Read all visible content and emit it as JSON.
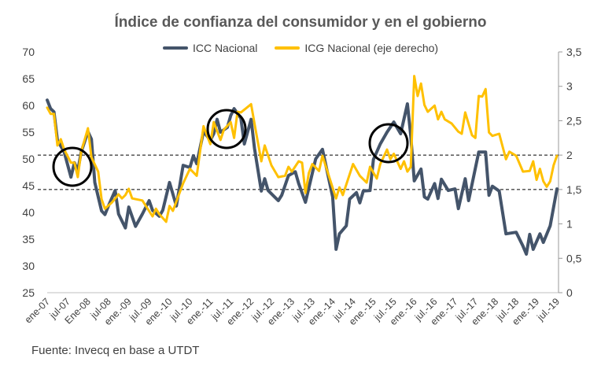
{
  "chart_data": {
    "type": "line",
    "title": "Índice de confianza del consumidor y en el gobierno",
    "source": "Fuente: Invecq en base a UTDT",
    "x_tick_labels": [
      "ene-07",
      "jul-07",
      "Ene-08",
      "jul-08",
      "ene.-09",
      "jul.-09",
      "ene.-10",
      "jul.-10",
      "ene.-11",
      "jul.-11",
      "ene.-12",
      "jul.-12",
      "ene.-13",
      "jul.-13",
      "ene.-14",
      "jul.-14",
      "ene.-15",
      "jul.-15",
      "ene.-16",
      "jul.-16",
      "ene.-17",
      "jul.-17",
      "ene.-18",
      "jul.-18",
      "ene.-19",
      "jul.-19"
    ],
    "xlim": [
      "2007-01",
      "2019-07"
    ],
    "y_left": {
      "ylim": [
        25,
        70
      ],
      "ticks": [
        "25",
        "30",
        "35",
        "40",
        "45",
        "50",
        "55",
        "60",
        "65",
        "70"
      ]
    },
    "y_right": {
      "ylim": [
        0,
        3.5
      ],
      "ticks": [
        "0",
        "0,5",
        "1",
        "1,5",
        "2",
        "2,5",
        "3",
        "3,5"
      ]
    },
    "reference_lines_right_axis": [
      2,
      1.5
    ],
    "grid": false,
    "legend_position": "top",
    "highlight_circles": [
      "2007-09",
      "2011-07",
      "2015-06"
    ],
    "series": [
      {
        "name": "ICC Nacional",
        "axis": "left",
        "color": "#44546A",
        "points": [
          [
            "2007-01",
            61.0
          ],
          [
            "2007-02",
            59.4
          ],
          [
            "2007-03",
            58.8
          ],
          [
            "2007-04",
            53.5
          ],
          [
            "2007-06",
            51.3
          ],
          [
            "2007-08",
            46.6
          ],
          [
            "2007-09",
            49.3
          ],
          [
            "2007-10",
            47.8
          ],
          [
            "2007-11",
            51.3
          ],
          [
            "2008-01",
            55.1
          ],
          [
            "2008-02",
            53.7
          ],
          [
            "2008-03",
            45.6
          ],
          [
            "2008-05",
            40.3
          ],
          [
            "2008-06",
            39.6
          ],
          [
            "2008-07",
            41.2
          ],
          [
            "2008-09",
            44.1
          ],
          [
            "2008-10",
            39.7
          ],
          [
            "2008-12",
            37.1
          ],
          [
            "2009-01",
            41.0
          ],
          [
            "2009-03",
            37.4
          ],
          [
            "2009-05",
            39.7
          ],
          [
            "2009-07",
            42.2
          ],
          [
            "2009-08",
            40.4
          ],
          [
            "2009-10",
            39.3
          ],
          [
            "2009-11",
            40.4
          ],
          [
            "2010-01",
            45.6
          ],
          [
            "2010-03",
            41.2
          ],
          [
            "2010-05",
            48.8
          ],
          [
            "2010-07",
            48.4
          ],
          [
            "2010-08",
            50.6
          ],
          [
            "2010-09",
            49.1
          ],
          [
            "2010-11",
            55.1
          ],
          [
            "2011-01",
            53.5
          ],
          [
            "2011-02",
            54.7
          ],
          [
            "2011-03",
            57.4
          ],
          [
            "2011-04",
            55.0
          ],
          [
            "2011-06",
            55.9
          ],
          [
            "2011-07",
            58.1
          ],
          [
            "2011-08",
            59.4
          ],
          [
            "2011-10",
            57.6
          ],
          [
            "2011-11",
            52.8
          ],
          [
            "2012-01",
            57.4
          ],
          [
            "2012-02",
            52.0
          ],
          [
            "2012-04",
            44.0
          ],
          [
            "2012-05",
            46.3
          ],
          [
            "2012-06",
            44.1
          ],
          [
            "2012-09",
            42.2
          ],
          [
            "2012-10",
            43.2
          ],
          [
            "2012-12",
            46.9
          ],
          [
            "2013-02",
            47.6
          ],
          [
            "2013-03",
            45.4
          ],
          [
            "2013-05",
            41.9
          ],
          [
            "2013-08",
            50.0
          ],
          [
            "2013-10",
            51.8
          ],
          [
            "2014-01",
            42.9
          ],
          [
            "2014-02",
            33.1
          ],
          [
            "2014-03",
            36.0
          ],
          [
            "2014-05",
            37.5
          ],
          [
            "2014-06",
            42.5
          ],
          [
            "2014-08",
            43.7
          ],
          [
            "2014-09",
            41.8
          ],
          [
            "2014-10",
            44.0
          ],
          [
            "2014-12",
            44.1
          ],
          [
            "2015-01",
            49.9
          ],
          [
            "2015-03",
            52.8
          ],
          [
            "2015-05",
            55.0
          ],
          [
            "2015-07",
            56.9
          ],
          [
            "2015-09",
            54.7
          ],
          [
            "2015-11",
            60.3
          ],
          [
            "2015-12",
            54.3
          ],
          [
            "2016-01",
            45.9
          ],
          [
            "2016-03",
            48.1
          ],
          [
            "2016-04",
            42.9
          ],
          [
            "2016-05",
            42.5
          ],
          [
            "2016-07",
            45.4
          ],
          [
            "2016-08",
            42.6
          ],
          [
            "2016-09",
            46.2
          ],
          [
            "2016-11",
            44.1
          ],
          [
            "2017-01",
            44.4
          ],
          [
            "2017-02",
            40.7
          ],
          [
            "2017-04",
            46.3
          ],
          [
            "2017-05",
            42.2
          ],
          [
            "2017-08",
            51.3
          ],
          [
            "2017-10",
            51.3
          ],
          [
            "2017-11",
            43.2
          ],
          [
            "2017-12",
            44.9
          ],
          [
            "2018-02",
            44.0
          ],
          [
            "2018-04",
            36.0
          ],
          [
            "2018-07",
            36.3
          ],
          [
            "2018-09",
            33.7
          ],
          [
            "2018-10",
            32.2
          ],
          [
            "2018-11",
            35.9
          ],
          [
            "2018-12",
            33.1
          ],
          [
            "2019-02",
            36.0
          ],
          [
            "2019-03",
            34.4
          ],
          [
            "2019-05",
            37.5
          ],
          [
            "2019-07",
            44.4
          ]
        ]
      },
      {
        "name": "ICG Nacional (eje derecho)",
        "axis": "right",
        "color": "#FFC000",
        "points": [
          [
            "2007-01",
            2.69
          ],
          [
            "2007-02",
            2.6
          ],
          [
            "2007-03",
            2.6
          ],
          [
            "2007-04",
            2.14
          ],
          [
            "2007-05",
            2.23
          ],
          [
            "2007-06",
            2.08
          ],
          [
            "2007-08",
            1.89
          ],
          [
            "2007-09",
            1.89
          ],
          [
            "2007-10",
            1.68
          ],
          [
            "2007-11",
            2.05
          ],
          [
            "2008-01",
            2.39
          ],
          [
            "2008-02",
            1.97
          ],
          [
            "2008-04",
            1.76
          ],
          [
            "2008-05",
            1.36
          ],
          [
            "2008-06",
            1.22
          ],
          [
            "2008-08",
            1.31
          ],
          [
            "2008-10",
            1.43
          ],
          [
            "2008-11",
            1.37
          ],
          [
            "2008-12",
            1.42
          ],
          [
            "2009-01",
            1.51
          ],
          [
            "2009-02",
            1.37
          ],
          [
            "2009-05",
            1.34
          ],
          [
            "2009-08",
            1.11
          ],
          [
            "2009-09",
            1.22
          ],
          [
            "2009-10",
            1.14
          ],
          [
            "2009-12",
            1.03
          ],
          [
            "2010-01",
            1.26
          ],
          [
            "2010-02",
            1.19
          ],
          [
            "2010-05",
            1.59
          ],
          [
            "2010-07",
            1.8
          ],
          [
            "2010-09",
            1.7
          ],
          [
            "2010-11",
            2.42
          ],
          [
            "2011-01",
            2.16
          ],
          [
            "2011-02",
            2.48
          ],
          [
            "2011-04",
            2.22
          ],
          [
            "2011-05",
            2.37
          ],
          [
            "2011-07",
            2.48
          ],
          [
            "2011-08",
            2.25
          ],
          [
            "2011-09",
            2.63
          ],
          [
            "2011-10",
            2.62
          ],
          [
            "2012-01",
            2.74
          ],
          [
            "2012-02",
            2.46
          ],
          [
            "2012-04",
            1.91
          ],
          [
            "2012-05",
            2.14
          ],
          [
            "2012-07",
            1.85
          ],
          [
            "2012-09",
            1.68
          ],
          [
            "2012-11",
            1.7
          ],
          [
            "2012-12",
            1.83
          ],
          [
            "2013-01",
            1.76
          ],
          [
            "2013-03",
            1.91
          ],
          [
            "2013-04",
            1.89
          ],
          [
            "2013-05",
            1.45
          ],
          [
            "2013-06",
            1.74
          ],
          [
            "2013-07",
            1.87
          ],
          [
            "2013-09",
            1.77
          ],
          [
            "2013-10",
            1.99
          ],
          [
            "2014-02",
            1.37
          ],
          [
            "2014-03",
            1.53
          ],
          [
            "2014-04",
            1.42
          ],
          [
            "2014-07",
            1.87
          ],
          [
            "2014-09",
            1.7
          ],
          [
            "2014-11",
            1.6
          ],
          [
            "2014-12",
            1.83
          ],
          [
            "2015-02",
            1.66
          ],
          [
            "2015-03",
            1.87
          ],
          [
            "2015-05",
            2.08
          ],
          [
            "2015-06",
            1.94
          ],
          [
            "2015-07",
            2.02
          ],
          [
            "2015-09",
            1.8
          ],
          [
            "2015-10",
            1.91
          ],
          [
            "2015-11",
            1.76
          ],
          [
            "2015-12",
            1.83
          ],
          [
            "2016-01",
            3.15
          ],
          [
            "2016-02",
            2.86
          ],
          [
            "2016-03",
            3.04
          ],
          [
            "2016-04",
            2.73
          ],
          [
            "2016-05",
            2.63
          ],
          [
            "2016-07",
            2.72
          ],
          [
            "2016-08",
            2.52
          ],
          [
            "2016-09",
            2.63
          ],
          [
            "2016-10",
            2.52
          ],
          [
            "2016-12",
            2.46
          ],
          [
            "2017-02",
            2.34
          ],
          [
            "2017-03",
            2.31
          ],
          [
            "2017-04",
            2.62
          ],
          [
            "2017-06",
            2.29
          ],
          [
            "2017-07",
            2.25
          ],
          [
            "2017-08",
            2.86
          ],
          [
            "2017-09",
            2.85
          ],
          [
            "2017-10",
            2.96
          ],
          [
            "2017-11",
            2.33
          ],
          [
            "2017-12",
            2.28
          ],
          [
            "2018-02",
            2.31
          ],
          [
            "2018-04",
            1.94
          ],
          [
            "2018-05",
            2.05
          ],
          [
            "2018-07",
            1.99
          ],
          [
            "2018-09",
            1.76
          ],
          [
            "2018-11",
            1.77
          ],
          [
            "2018-12",
            1.91
          ],
          [
            "2019-01",
            1.64
          ],
          [
            "2019-02",
            1.8
          ],
          [
            "2019-03",
            1.62
          ],
          [
            "2019-04",
            1.54
          ],
          [
            "2019-05",
            1.62
          ],
          [
            "2019-06",
            1.85
          ],
          [
            "2019-07",
            1.99
          ]
        ]
      }
    ]
  }
}
